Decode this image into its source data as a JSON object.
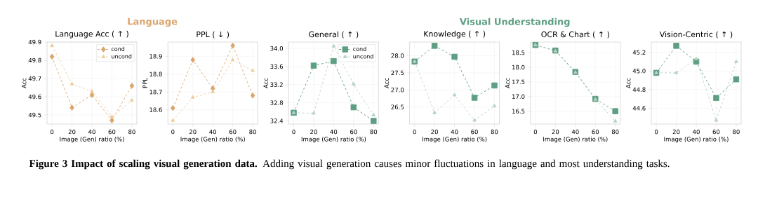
{
  "chart_data": [
    {
      "type": "line",
      "title": "Language Acc ( ↑ )",
      "xlabel": "Image (Gen) ratio (%)",
      "ylabel": "Acc",
      "annotations": [
        "Language"
      ],
      "x": [
        0,
        20,
        40,
        60,
        80
      ],
      "xlim": [
        -5,
        85
      ],
      "xticks": [
        0,
        20,
        40,
        60,
        80
      ],
      "ylim": [
        49.45,
        49.9
      ],
      "yticks": [
        49.5,
        49.6,
        49.7,
        49.8,
        49.9
      ],
      "grid": true,
      "legend": "top right",
      "line_style": "dashed",
      "series": [
        {
          "name": "cond",
          "color": "#dba56d",
          "marker": "diamond",
          "values": [
            49.82,
            49.54,
            49.61,
            49.47,
            49.66
          ]
        },
        {
          "name": "uncond",
          "color": "#edcd9f",
          "marker": "triangle",
          "values": [
            49.88,
            49.67,
            49.63,
            49.49,
            49.58
          ]
        }
      ]
    },
    {
      "type": "line",
      "title": "PPL ( ↓ )",
      "xlabel": "Image (Gen) ratio (%)",
      "ylabel": "PPL",
      "x": [
        0,
        20,
        40,
        60,
        80
      ],
      "xlim": [
        -5,
        85
      ],
      "xticks": [
        0,
        20,
        40,
        60,
        80
      ],
      "ylim": [
        18.52,
        18.98
      ],
      "yticks": [
        18.6,
        18.7,
        18.8,
        18.9
      ],
      "grid": true,
      "line_style": "dashed",
      "series": [
        {
          "color": "#dba56d",
          "marker": "diamond",
          "values": [
            18.61,
            18.88,
            18.72,
            18.96,
            18.68
          ]
        },
        {
          "color": "#edcd9f",
          "marker": "triangle",
          "values": [
            18.54,
            18.67,
            18.7,
            18.88,
            18.82
          ]
        }
      ]
    },
    {
      "type": "line",
      "title": "General ( ↑ )",
      "xlabel": "Image (Gen) ratio (%)",
      "ylabel": "Acc",
      "annotations": [
        "Visual Understanding"
      ],
      "x": [
        0,
        20,
        40,
        60,
        80
      ],
      "xlim": [
        -5,
        85
      ],
      "xticks": [
        0,
        20,
        40,
        60,
        80
      ],
      "ylim": [
        32.33,
        34.14
      ],
      "yticks": [
        32.4,
        32.8,
        33.2,
        33.6,
        {
          "value": 34,
          "label": "34.0"
        }
      ],
      "grid": true,
      "legend": "top right",
      "line_style": "dashed",
      "series": [
        {
          "name": "cond",
          "color": "#5e9f84",
          "marker": "square",
          "values": [
            32.58,
            33.62,
            33.72,
            32.7,
            32.4
          ]
        },
        {
          "name": "uncond",
          "color": "#b9d3c5",
          "marker": "triangle",
          "values": [
            32.58,
            32.57,
            34.05,
            33.21,
            32.53
          ]
        }
      ]
    },
    {
      "type": "line",
      "title": "Knowledge ( ↑ )",
      "xlabel": "Image (Gen) ratio (%)",
      "ylabel": "Acc",
      "x": [
        0,
        20,
        40,
        60,
        80
      ],
      "xlim": [
        -5,
        85
      ],
      "xticks": [
        0,
        20,
        40,
        60,
        80
      ],
      "ylim": [
        26.0,
        28.4
      ],
      "yticks": [
        26.5,
        {
          "value": 27,
          "label": "27.0"
        },
        27.5,
        {
          "value": 28,
          "label": "28.0"
        }
      ],
      "grid": true,
      "line_style": "dashed",
      "series": [
        {
          "color": "#5e9f84",
          "marker": "square",
          "values": [
            27.83,
            28.29,
            27.97,
            26.77,
            27.13
          ]
        },
        {
          "color": "#b9d3c5",
          "marker": "triangle",
          "values": [
            27.83,
            26.33,
            26.85,
            26.11,
            26.53
          ]
        }
      ]
    },
    {
      "type": "line",
      "title": "OCR & Chart ( ↑ )",
      "xlabel": "Image (Gen) ratio (%)",
      "ylabel": "Acc",
      "x": [
        0,
        20,
        40,
        60,
        80
      ],
      "xlim": [
        -5,
        85
      ],
      "xticks": [
        0,
        20,
        40,
        60,
        80
      ],
      "ylim": [
        16.06,
        18.86
      ],
      "yticks": [
        16.5,
        {
          "value": 17,
          "label": "17.0"
        },
        17.5,
        {
          "value": 18,
          "label": "18.0"
        },
        18.5
      ],
      "grid": true,
      "line_style": "dashed",
      "series": [
        {
          "color": "#5e9f84",
          "marker": "square",
          "values": [
            18.76,
            18.57,
            17.84,
            16.92,
            16.5
          ]
        },
        {
          "color": "#b9d3c5",
          "marker": "triangle",
          "values": [
            18.76,
            18.55,
            17.82,
            16.9,
            16.16
          ]
        }
      ]
    },
    {
      "type": "line",
      "title": "Vision-Centric ( ↑ )",
      "xlabel": "Image (Gen) ratio (%)",
      "ylabel": "Acc",
      "annotations": [
        "**Figure 3  Impact of scaling visual generation data.** Adding visual generation causes minor fluctuations in language and most understanding tasks."
      ],
      "x": [
        0,
        20,
        40,
        60,
        80
      ],
      "xlim": [
        -5,
        85
      ],
      "xticks": [
        0,
        20,
        40,
        60,
        80
      ],
      "ylim": [
        44.43,
        45.31
      ],
      "yticks": [
        44.6,
        44.8,
        {
          "value": 45,
          "label": "45.0"
        },
        45.2
      ],
      "grid": true,
      "line_style": "dashed",
      "series": [
        {
          "color": "#5e9f84",
          "marker": "square",
          "values": [
            44.98,
            45.27,
            45.1,
            44.71,
            44.91
          ]
        },
        {
          "color": "#b9d3c5",
          "marker": "triangle",
          "values": [
            44.98,
            44.98,
            45.13,
            44.47,
            45.1
          ]
        }
      ]
    }
  ]
}
